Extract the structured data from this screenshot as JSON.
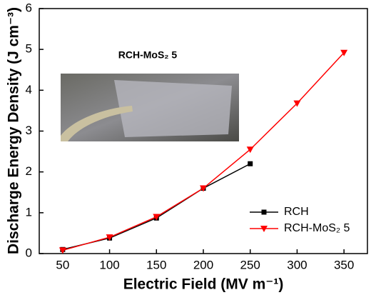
{
  "chart_data": {
    "type": "line",
    "xlabel": "Electric Field (MV m⁻¹)",
    "ylabel": "Discharge Energy Density (J cm⁻³)",
    "annotation": "RCH-MoS₂ 5",
    "x": [
      50,
      100,
      150,
      200,
      250,
      300,
      350
    ],
    "series": [
      {
        "name": "RCH",
        "color": "#000000",
        "marker": "square",
        "values": [
          0.1,
          0.38,
          0.87,
          1.6,
          2.2,
          null,
          null
        ]
      },
      {
        "name": "RCH-MoS₂ 5",
        "color": "#ff0000",
        "marker": "triangle-down",
        "values": [
          0.08,
          0.4,
          0.9,
          1.6,
          2.55,
          3.68,
          4.92
        ]
      }
    ],
    "xlim": [
      25,
      375
    ],
    "xticks": [
      50,
      100,
      150,
      200,
      250,
      300,
      350
    ],
    "ylim": [
      0,
      6
    ],
    "yticks": [
      0,
      1,
      2,
      3,
      4,
      5,
      6
    ],
    "legend": "lower right"
  }
}
